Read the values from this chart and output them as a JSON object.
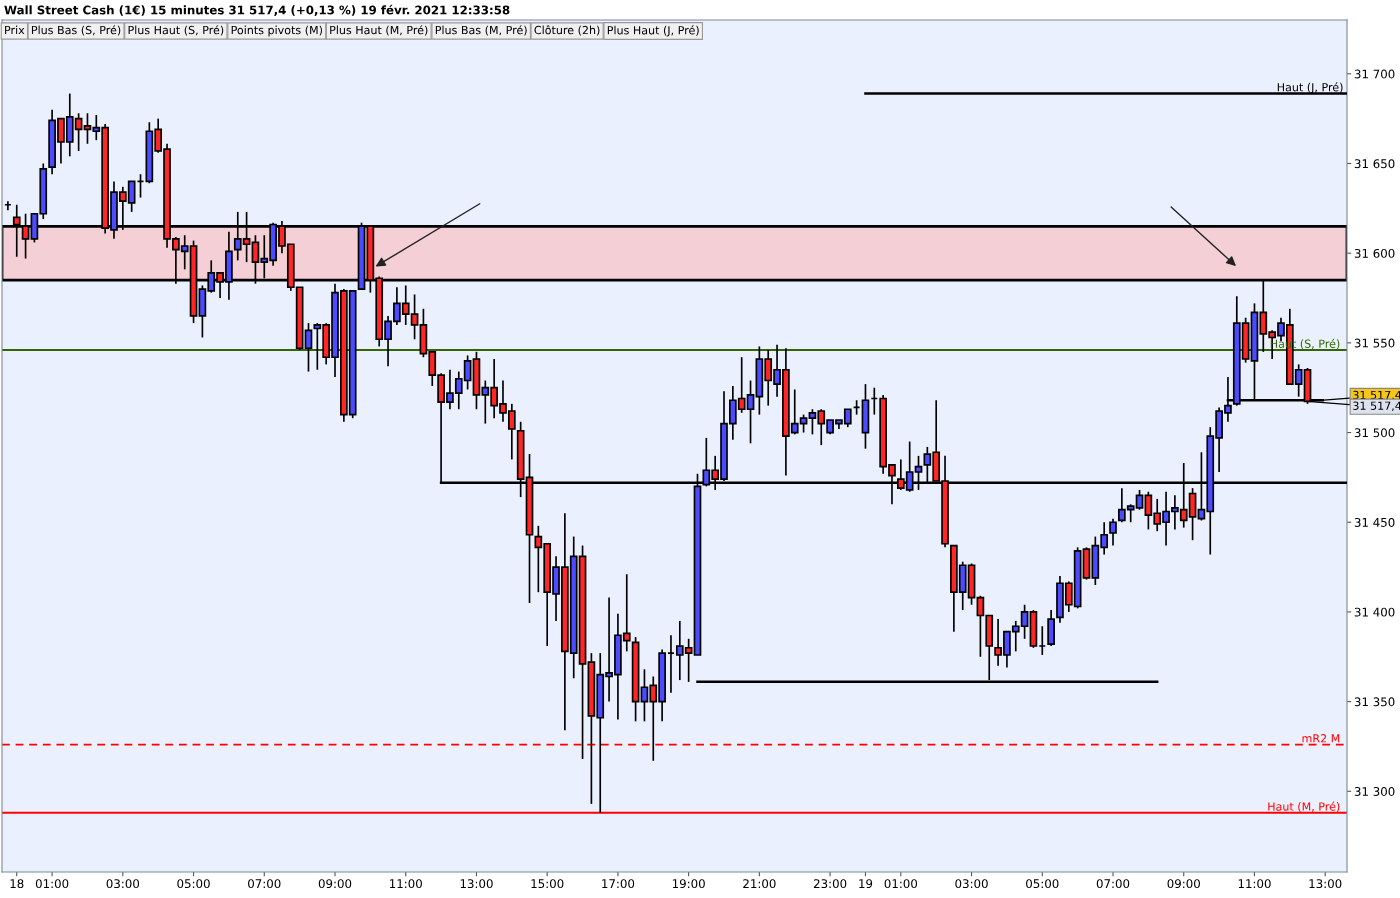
{
  "chart_data": {
    "type": "candlestick",
    "title": "Wall Street Cash (1€) 15 minutes 31 517,4 (+0,13 %) 19 févr. 2021 12:33:58",
    "x": [
      "2021-02-17T23:45",
      "2021-02-18T00:00",
      "2021-02-18T00:15",
      "2021-02-18T00:30",
      "2021-02-18T00:45",
      "2021-02-18T01:00",
      "2021-02-18T01:15",
      "2021-02-18T01:30",
      "2021-02-18T01:45",
      "2021-02-18T02:00",
      "2021-02-18T02:15",
      "2021-02-18T02:30",
      "2021-02-18T02:45",
      "2021-02-18T03:00",
      "2021-02-18T03:15",
      "2021-02-18T03:30",
      "2021-02-18T03:45",
      "2021-02-18T04:00",
      "2021-02-18T04:15",
      "2021-02-18T04:30",
      "2021-02-18T04:45",
      "2021-02-18T05:00",
      "2021-02-18T05:15",
      "2021-02-18T05:30",
      "2021-02-18T05:45",
      "2021-02-18T06:00",
      "2021-02-18T06:15",
      "2021-02-18T06:30",
      "2021-02-18T06:45",
      "2021-02-18T07:00",
      "2021-02-18T07:15",
      "2021-02-18T07:30",
      "2021-02-18T07:45",
      "2021-02-18T08:00",
      "2021-02-18T08:15",
      "2021-02-18T08:30",
      "2021-02-18T08:45",
      "2021-02-18T09:00",
      "2021-02-18T09:15",
      "2021-02-18T09:30",
      "2021-02-18T09:45",
      "2021-02-18T10:00",
      "2021-02-18T10:15",
      "2021-02-18T10:30",
      "2021-02-18T10:45",
      "2021-02-18T11:00",
      "2021-02-18T11:15",
      "2021-02-18T11:30",
      "2021-02-18T11:45",
      "2021-02-18T12:00",
      "2021-02-18T12:15",
      "2021-02-18T12:30",
      "2021-02-18T12:45",
      "2021-02-18T13:00",
      "2021-02-18T13:15",
      "2021-02-18T13:30",
      "2021-02-18T13:45",
      "2021-02-18T14:00",
      "2021-02-18T14:15",
      "2021-02-18T14:30",
      "2021-02-18T14:45",
      "2021-02-18T15:00",
      "2021-02-18T15:15",
      "2021-02-18T15:30",
      "2021-02-18T15:45",
      "2021-02-18T16:00",
      "2021-02-18T16:15",
      "2021-02-18T16:30",
      "2021-02-18T16:45",
      "2021-02-18T17:00",
      "2021-02-18T17:15",
      "2021-02-18T17:30",
      "2021-02-18T17:45",
      "2021-02-18T18:00",
      "2021-02-18T18:15",
      "2021-02-18T18:30",
      "2021-02-18T18:45",
      "2021-02-18T19:00",
      "2021-02-18T19:15",
      "2021-02-18T19:30",
      "2021-02-18T19:45",
      "2021-02-18T20:00",
      "2021-02-18T20:15",
      "2021-02-18T20:30",
      "2021-02-18T20:45",
      "2021-02-18T21:00",
      "2021-02-18T21:15",
      "2021-02-18T21:30",
      "2021-02-18T21:45",
      "2021-02-18T22:00",
      "2021-02-18T22:15",
      "2021-02-18T22:30",
      "2021-02-18T22:45",
      "2021-02-18T23:00",
      "2021-02-18T23:15",
      "2021-02-18T23:30",
      "2021-02-18T23:45",
      "2021-02-19T00:00",
      "2021-02-19T00:15",
      "2021-02-19T00:30",
      "2021-02-19T00:45",
      "2021-02-19T01:00",
      "2021-02-19T01:15",
      "2021-02-19T01:30",
      "2021-02-19T01:45",
      "2021-02-19T02:00",
      "2021-02-19T02:15",
      "2021-02-19T02:30",
      "2021-02-19T02:45",
      "2021-02-19T03:00",
      "2021-02-19T03:15",
      "2021-02-19T03:30",
      "2021-02-19T03:45",
      "2021-02-19T04:00",
      "2021-02-19T04:15",
      "2021-02-19T04:30",
      "2021-02-19T04:45",
      "2021-02-19T05:00",
      "2021-02-19T05:15",
      "2021-02-19T05:30",
      "2021-02-19T05:45",
      "2021-02-19T06:00",
      "2021-02-19T06:15",
      "2021-02-19T06:30",
      "2021-02-19T06:45",
      "2021-02-19T07:00",
      "2021-02-19T07:15",
      "2021-02-19T07:30",
      "2021-02-19T07:45",
      "2021-02-19T08:00",
      "2021-02-19T08:15",
      "2021-02-19T08:30",
      "2021-02-19T08:45",
      "2021-02-19T09:00",
      "2021-02-19T09:15",
      "2021-02-19T09:30",
      "2021-02-19T09:45",
      "2021-02-19T10:00",
      "2021-02-19T10:15",
      "2021-02-19T10:30",
      "2021-02-19T10:45",
      "2021-02-19T11:00",
      "2021-02-19T11:15",
      "2021-02-19T11:30",
      "2021-02-19T11:45",
      "2021-02-19T12:00",
      "2021-02-19T12:15",
      "2021-02-19T12:30"
    ],
    "ohlc": [
      [
        31627,
        31629,
        31624,
        31627
      ],
      [
        31620,
        31627,
        31598,
        31616
      ],
      [
        31615,
        31622,
        31597,
        31608
      ],
      [
        31608,
        31622,
        31606,
        31622
      ],
      [
        31622,
        31650,
        31619,
        31647
      ],
      [
        31648,
        31680,
        31644,
        31674
      ],
      [
        31675,
        31675,
        31650,
        31662
      ],
      [
        31662,
        31689,
        31654,
        31676
      ],
      [
        31675,
        31678,
        31657,
        31669
      ],
      [
        31671,
        31678,
        31661,
        31669
      ],
      [
        31668,
        31677,
        31663,
        31670
      ],
      [
        31670,
        31672,
        31611,
        31614
      ],
      [
        31613,
        31640,
        31608,
        31634
      ],
      [
        31634,
        31637,
        31613,
        31629
      ],
      [
        31628,
        31640,
        31623,
        31640
      ],
      [
        31640,
        31644,
        31631,
        31640
      ],
      [
        31640,
        31673,
        31639,
        31668
      ],
      [
        31669,
        31675,
        31656,
        31657
      ],
      [
        31658,
        31661,
        31603,
        31608
      ],
      [
        31608,
        31609,
        31583,
        31602
      ],
      [
        31601,
        31610,
        31591,
        31604
      ],
      [
        31604,
        31607,
        31561,
        31565
      ],
      [
        31565,
        31582,
        31553,
        31580
      ],
      [
        31579,
        31596,
        31578,
        31589
      ],
      [
        31589,
        31589,
        31575,
        31584
      ],
      [
        31584,
        31612,
        31574,
        31601
      ],
      [
        31602,
        31623,
        31596,
        31608
      ],
      [
        31608,
        31623,
        31595,
        31605
      ],
      [
        31606,
        31610,
        31583,
        31595
      ],
      [
        31595,
        31610,
        31586,
        31597
      ],
      [
        31596,
        31617,
        31593,
        31616
      ],
      [
        31615,
        31618,
        31600,
        31604
      ],
      [
        31605,
        31605,
        31579,
        31581
      ],
      [
        31581,
        31581,
        31546,
        31547
      ],
      [
        31547,
        31561,
        31534,
        31557
      ],
      [
        31558,
        31561,
        31535,
        31560
      ],
      [
        31560,
        31561,
        31538,
        31542
      ],
      [
        31542,
        31583,
        31531,
        31578
      ],
      [
        31579,
        31580,
        31506,
        31510
      ],
      [
        31510,
        31579,
        31508,
        31579
      ],
      [
        31580,
        31617,
        31580,
        31615
      ],
      [
        31615,
        31615,
        31578,
        31585
      ],
      [
        31586,
        31587,
        31548,
        31552
      ],
      [
        31552,
        31565,
        31537,
        31562
      ],
      [
        31562,
        31581,
        31560,
        31572
      ],
      [
        31572,
        31582,
        31560,
        31566
      ],
      [
        31566,
        31577,
        31552,
        31560
      ],
      [
        31560,
        31569,
        31542,
        31544
      ],
      [
        31545,
        31545,
        31526,
        31532
      ],
      [
        31532,
        31533,
        31472,
        31517
      ],
      [
        31517,
        31535,
        31513,
        31522
      ],
      [
        31522,
        31534,
        31513,
        31530
      ],
      [
        31529,
        31543,
        31524,
        31540
      ],
      [
        31541,
        31545,
        31513,
        31521
      ],
      [
        31521,
        31529,
        31505,
        31525
      ],
      [
        31525,
        31541,
        31508,
        31515
      ],
      [
        31516,
        31529,
        31506,
        31511
      ],
      [
        31512,
        31516,
        31485,
        31502
      ],
      [
        31501,
        31506,
        31464,
        31474
      ],
      [
        31475,
        31488,
        31405,
        31443
      ],
      [
        31442,
        31448,
        31411,
        31436
      ],
      [
        31438,
        31438,
        31381,
        31411
      ],
      [
        31410,
        31431,
        31395,
        31425
      ],
      [
        31425,
        31455,
        31334,
        31378
      ],
      [
        31377,
        31442,
        31363,
        31431
      ],
      [
        31431,
        31437,
        31318,
        31371
      ],
      [
        31372,
        31377,
        31293,
        31342
      ],
      [
        31341,
        31377,
        31288,
        31365
      ],
      [
        31364,
        31408,
        31350,
        31366
      ],
      [
        31365,
        31399,
        31340,
        31387
      ],
      [
        31388,
        31421,
        31378,
        31384
      ],
      [
        31383,
        31386,
        31339,
        31350
      ],
      [
        31350,
        31368,
        31339,
        31358
      ],
      [
        31359,
        31364,
        31317,
        31350
      ],
      [
        31350,
        31379,
        31339,
        31377
      ],
      [
        31377,
        31387,
        31355,
        31377
      ],
      [
        31376,
        31395,
        31362,
        31381
      ],
      [
        31380,
        31385,
        31361,
        31377
      ],
      [
        31376,
        31477,
        31376,
        31470
      ],
      [
        31471,
        31497,
        31470,
        31479
      ],
      [
        31479,
        31487,
        31468,
        31474
      ],
      [
        31474,
        31523,
        31473,
        31505
      ],
      [
        31505,
        31526,
        31496,
        31518
      ],
      [
        31519,
        31542,
        31511,
        31513
      ],
      [
        31513,
        31529,
        31494,
        31521
      ],
      [
        31520,
        31548,
        31510,
        31541
      ],
      [
        31541,
        31546,
        31515,
        31529
      ],
      [
        31527,
        31549,
        31520,
        31535
      ],
      [
        31535,
        31547,
        31476,
        31498
      ],
      [
        31500,
        31524,
        31499,
        31505
      ],
      [
        31505,
        31510,
        31500,
        31508
      ],
      [
        31508,
        31513,
        31499,
        31511
      ],
      [
        31512,
        31513,
        31493,
        31505
      ],
      [
        31500,
        31507,
        31499,
        31507
      ],
      [
        31505,
        31507,
        31502,
        31507
      ],
      [
        31505,
        31513,
        31503,
        31513
      ],
      [
        31514,
        31518,
        31510,
        31514
      ],
      [
        31500,
        31527,
        31491,
        31518
      ],
      [
        31519,
        31525,
        31510,
        31519
      ],
      [
        31519,
        31521,
        31477,
        31481
      ],
      [
        31482,
        31482,
        31460,
        31476
      ],
      [
        31474,
        31485,
        31468,
        31469
      ],
      [
        31468,
        31495,
        31467,
        31478
      ],
      [
        31478,
        31487,
        31468,
        31481
      ],
      [
        31482,
        31492,
        31472,
        31488
      ],
      [
        31489,
        31518,
        31473,
        31473
      ],
      [
        31473,
        31487,
        31436,
        31438
      ],
      [
        31437,
        31437,
        31389,
        31411
      ],
      [
        31411,
        31428,
        31401,
        31426
      ],
      [
        31426,
        31427,
        31404,
        31408
      ],
      [
        31408,
        31409,
        31375,
        31398
      ],
      [
        31398,
        31398,
        31362,
        31381
      ],
      [
        31380,
        31396,
        31370,
        31376
      ],
      [
        31376,
        31389,
        31369,
        31389
      ],
      [
        31389,
        31395,
        31378,
        31392
      ],
      [
        31392,
        31404,
        31385,
        31400
      ],
      [
        31400,
        31401,
        31380,
        31381
      ],
      [
        31381,
        31392,
        31376,
        31381
      ],
      [
        31382,
        31401,
        31381,
        31396
      ],
      [
        31397,
        31420,
        31394,
        31416
      ],
      [
        31416,
        31417,
        31400,
        31404
      ],
      [
        31403,
        31436,
        31402,
        31434
      ],
      [
        31435,
        31436,
        31418,
        31419
      ],
      [
        31419,
        31442,
        31415,
        31437
      ],
      [
        31436,
        31450,
        31432,
        31443
      ],
      [
        31444,
        31452,
        31437,
        31450
      ],
      [
        31451,
        31469,
        31450,
        31457
      ],
      [
        31457,
        31460,
        31450,
        31459
      ],
      [
        31458,
        31468,
        31457,
        31465
      ],
      [
        31465,
        31467,
        31446,
        31454
      ],
      [
        31455,
        31463,
        31445,
        31449
      ],
      [
        31450,
        31467,
        31437,
        31456
      ],
      [
        31456,
        31465,
        31446,
        31458
      ],
      [
        31457,
        31483,
        31447,
        31451
      ],
      [
        31466,
        31469,
        31440,
        31453
      ],
      [
        31452,
        31489,
        31451,
        31457
      ],
      [
        31456,
        31503,
        31432,
        31498
      ],
      [
        31497,
        31514,
        31478,
        31512
      ],
      [
        31511,
        31531,
        31506,
        31515
      ],
      [
        31516,
        31576,
        31515,
        31561
      ],
      [
        31561,
        31564,
        31539,
        31541
      ],
      [
        31540,
        31572,
        31518,
        31567
      ],
      [
        31567,
        31585,
        31545,
        31555
      ],
      [
        31556,
        31557,
        31541,
        31553
      ],
      [
        31554,
        31564,
        31551,
        31561
      ],
      [
        31560,
        31569,
        31527,
        31527
      ],
      [
        31527,
        31538,
        31520,
        31535
      ],
      [
        31535,
        31536,
        31516,
        31517.4
      ]
    ],
    "series": [
      {
        "type": "line",
        "name": "Haut (J, Pré)",
        "color": "#000000",
        "x": [
          "2021-02-19T00:00",
          "2021-02-19T13:37"
        ],
        "values": [
          31689,
          31689
        ]
      },
      {
        "type": "line",
        "color": "#000000",
        "x": [
          "2021-02-18T12:00",
          "2021-02-19T13:37"
        ],
        "values": [
          31472,
          31472
        ]
      },
      {
        "type": "line",
        "color": "#000000",
        "x": [
          "2021-02-18T19:15",
          "2021-02-19T08:15"
        ],
        "values": [
          31361,
          31361
        ]
      },
      {
        "type": "line",
        "color": "#000000",
        "x": [
          "2021-02-19T10:15",
          "2021-02-19T12:56"
        ],
        "values": [
          31518,
          31518
        ]
      }
    ],
    "ref_lines": [
      {
        "axis": "y",
        "value": 31546,
        "label": "Haut (S, Pré)",
        "color": "#336600",
        "line_style": "solid"
      },
      {
        "axis": "y",
        "value": 31326,
        "label": "mR2 M",
        "color": "#ff0000",
        "line_style": "dashed"
      },
      {
        "axis": "y",
        "value": 31288,
        "label": "Haut (M, Pré)",
        "color": "#ff0000",
        "line_style": "solid"
      }
    ],
    "bands": [
      {
        "axis": "y",
        "from": 31585,
        "to": 31615,
        "color": "#f5cfd6"
      }
    ],
    "annotations": [
      "Prix",
      "Plus Bas (S, Pré)",
      "Plus Haut (S, Pré)",
      "Points pivots (M)",
      "Plus Haut (M, Pré)",
      "Plus Bas (M, Pré)",
      "Clôture (2h)",
      "Plus Haut (J, Pré)",
      {
        "text": "31 517,4",
        "x": "2021-02-19T12:30",
        "y": 31517.4
      },
      {
        "text": "31 517,4",
        "x": "2021-02-19T12:30",
        "y": 31517.4
      }
    ],
    "xlim": [
      "2021-02-17T23:35",
      "2021-02-19T13:37"
    ],
    "xticks": [
      {
        "value": "2021-02-18T00:00",
        "label": "18"
      },
      {
        "value": "2021-02-18T01:00",
        "label": "01:00"
      },
      {
        "value": "2021-02-18T03:00",
        "label": "03:00"
      },
      {
        "value": "2021-02-18T05:00",
        "label": "05:00"
      },
      {
        "value": "2021-02-18T07:00",
        "label": "07:00"
      },
      {
        "value": "2021-02-18T09:00",
        "label": "09:00"
      },
      {
        "value": "2021-02-18T11:00",
        "label": "11:00"
      },
      {
        "value": "2021-02-18T13:00",
        "label": "13:00"
      },
      {
        "value": "2021-02-18T15:00",
        "label": "15:00"
      },
      {
        "value": "2021-02-18T17:00",
        "label": "17:00"
      },
      {
        "value": "2021-02-18T19:00",
        "label": "19:00"
      },
      {
        "value": "2021-02-18T21:00",
        "label": "21:00"
      },
      {
        "value": "2021-02-18T23:00",
        "label": "23:00"
      },
      {
        "value": "2021-02-19T00:00",
        "label": "19"
      },
      {
        "value": "2021-02-19T01:00",
        "label": "01:00"
      },
      {
        "value": "2021-02-19T03:00",
        "label": "03:00"
      },
      {
        "value": "2021-02-19T05:00",
        "label": "05:00"
      },
      {
        "value": "2021-02-19T07:00",
        "label": "07:00"
      },
      {
        "value": "2021-02-19T09:00",
        "label": "09:00"
      },
      {
        "value": "2021-02-19T11:00",
        "label": "11:00"
      },
      {
        "value": "2021-02-19T13:00",
        "label": "13:00"
      }
    ],
    "ylim": [
      31255,
      31730
    ],
    "yticks": [
      {
        "value": 31300,
        "label": "31 300"
      },
      {
        "value": 31350,
        "label": "31 350"
      },
      {
        "value": 31400,
        "label": "31 400"
      },
      {
        "value": 31450,
        "label": "31 450"
      },
      {
        "value": 31500,
        "label": "31 500"
      },
      {
        "value": 31550,
        "label": "31 550"
      },
      {
        "value": 31600,
        "label": "31 600"
      },
      {
        "value": 31650,
        "label": "31 650"
      },
      {
        "value": 31700,
        "label": "31 700"
      }
    ],
    "grid": false
  }
}
